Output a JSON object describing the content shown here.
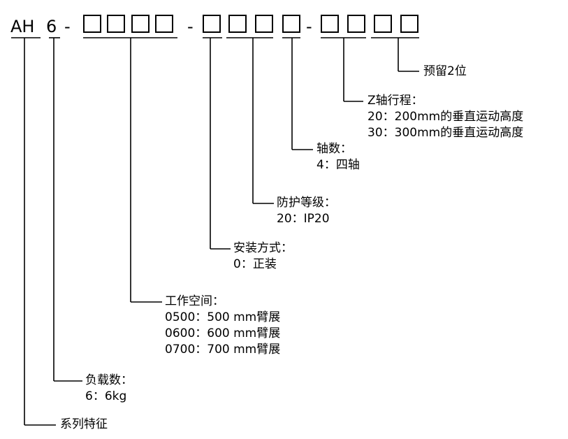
{
  "code": {
    "series_token": "AH",
    "load_token": "6",
    "separator": "-"
  },
  "descriptions": {
    "reserved": "预留2位",
    "z_travel": {
      "title": "Z轴行程：",
      "options": [
        "20：200mm的垂直运动高度",
        "30：300mm的垂直运动高度"
      ]
    },
    "axes": {
      "title": "轴数：",
      "options": [
        "4：四轴"
      ]
    },
    "protection": {
      "title": "防护等级：",
      "options": [
        "20：IP20"
      ]
    },
    "mounting": {
      "title": "安装方式：",
      "options": [
        "0：正装"
      ]
    },
    "workspace": {
      "title": "工作空间：",
      "options": [
        "0500：500 mm臂展",
        "0600：600 mm臂展",
        "0700：700 mm臂展"
      ]
    },
    "payload": {
      "title": "负载数：",
      "options": [
        "6：6kg"
      ]
    },
    "series": "系列特征"
  }
}
